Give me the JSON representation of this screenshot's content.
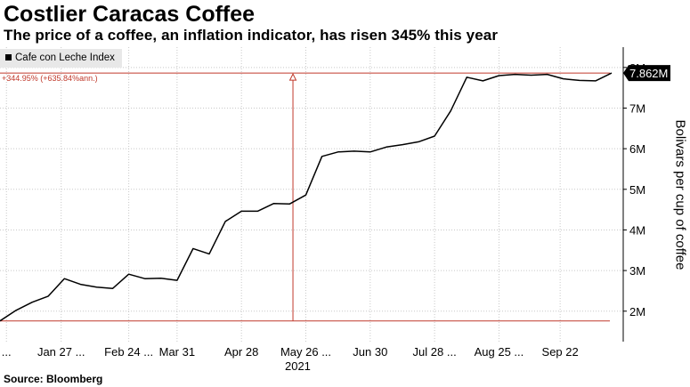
{
  "title": "Costlier Caracas Coffee",
  "subtitle": "The price of a coffee, an inflation indicator, has risen 345% this year",
  "source": "Source: Bloomberg",
  "legend": "Cafe con Leche Index",
  "annotation": "+344.95% (+635.84%ann.)",
  "last_value_label": "7.862M",
  "colors": {
    "line": "#000000",
    "annotation": "#c0392b",
    "grid": "#c8c8c8"
  },
  "chart_data": {
    "type": "line",
    "title": "Costlier Caracas Coffee",
    "subtitle": "The price of a coffee, an inflation indicator, has risen 345% this year",
    "ylabel": "Bolivars per cup of coffee",
    "ylim": [
      1.25,
      8.5
    ],
    "y_ticks": [
      {
        "value": 2,
        "label": "2M"
      },
      {
        "value": 3,
        "label": "3M"
      },
      {
        "value": 4,
        "label": "4M"
      },
      {
        "value": 5,
        "label": "5M"
      },
      {
        "value": 6,
        "label": "6M"
      },
      {
        "value": 7,
        "label": "7M"
      },
      {
        "value": 8,
        "label": "8M"
      }
    ],
    "x_labels": [
      {
        "index": 0.4,
        "label": "..."
      },
      {
        "index": 3.8,
        "label": "Jan 27 ..."
      },
      {
        "index": 8.0,
        "label": "Feb 24 ..."
      },
      {
        "index": 11.0,
        "label": "Mar 31"
      },
      {
        "index": 15.0,
        "label": "Apr 28"
      },
      {
        "index": 19.0,
        "label": "May 26 ..."
      },
      {
        "index": 23.0,
        "label": "Jun 30"
      },
      {
        "index": 27.0,
        "label": "Jul 28 ..."
      },
      {
        "index": 31.0,
        "label": "Aug 25 ..."
      },
      {
        "index": 34.8,
        "label": "Sep 22"
      }
    ],
    "year_label": {
      "index": 18.5,
      "label": "2021"
    },
    "grid": true,
    "legend_position": "top-left",
    "reference": {
      "start_index": 18.2,
      "start_value": 1.76,
      "end_value": 7.862
    },
    "series": [
      {
        "name": "Cafe con Leche Index",
        "values": [
          1.76,
          2.02,
          2.22,
          2.37,
          2.8,
          2.66,
          2.59,
          2.56,
          2.91,
          2.8,
          2.81,
          2.76,
          3.54,
          3.41,
          4.21,
          4.46,
          4.46,
          4.65,
          4.64,
          4.86,
          5.81,
          5.92,
          5.94,
          5.92,
          6.04,
          6.1,
          6.17,
          6.31,
          6.93,
          7.76,
          7.67,
          7.8,
          7.83,
          7.81,
          7.83,
          7.72,
          7.68,
          7.67,
          7.862
        ]
      }
    ]
  }
}
